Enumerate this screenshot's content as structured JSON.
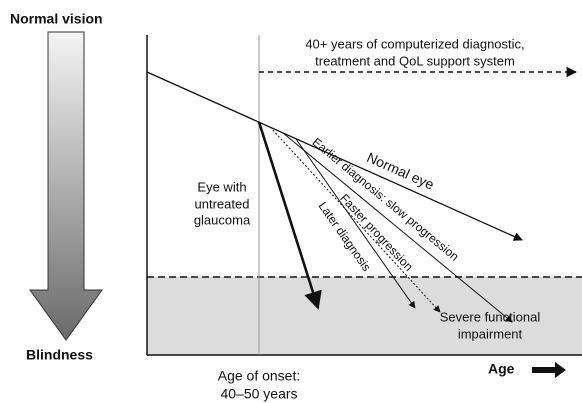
{
  "labels": {
    "top": "Normal vision",
    "bottom": "Blindness",
    "support_1": "40+ years of computerized diagnostic,",
    "support_2": "treatment and QoL support system",
    "normal_eye": "Normal eye",
    "untreated_1": "Eye with",
    "untreated_2": "untreated",
    "untreated_3": "glaucoma",
    "earlier": "Earlier diagnosis: slow progression",
    "faster": "Faster progression",
    "later": "Later diagnosis",
    "severe_1": "Severe functional",
    "severe_2": "impairment",
    "onset_1": "Age of onset:",
    "onset_2": "40–50 years",
    "age": "Age"
  }
}
